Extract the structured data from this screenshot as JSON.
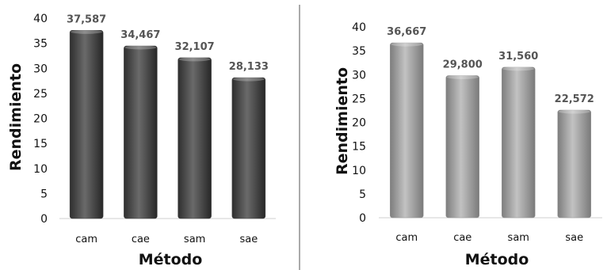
{
  "chart_data": [
    {
      "type": "bar",
      "categories": [
        "cam",
        "cae",
        "sam",
        "sae"
      ],
      "values": [
        37.587,
        34.467,
        32.107,
        28.133
      ],
      "data_labels": [
        "37,587",
        "34,467",
        "32,107",
        "28,133"
      ],
      "xlabel": "Método",
      "ylabel": "Rendimiento",
      "ylim": [
        0,
        40
      ],
      "yticks": [
        "0",
        "5",
        "10",
        "15",
        "20",
        "25",
        "30",
        "35",
        "40"
      ],
      "grid": false,
      "bar_color": "#4a4a4a"
    },
    {
      "type": "bar",
      "categories": [
        "cam",
        "cae",
        "sam",
        "sae"
      ],
      "values": [
        36.667,
        29.8,
        31.56,
        22.572
      ],
      "data_labels": [
        "36,667",
        "29,800",
        "31,560",
        "22,572"
      ],
      "xlabel": "Método",
      "ylabel": "Rendimiento",
      "ylim": [
        0,
        40
      ],
      "yticks": [
        "0",
        "5",
        "10",
        "15",
        "20",
        "25",
        "30",
        "35",
        "40"
      ],
      "grid": false,
      "bar_color": "#9a9a9a"
    }
  ],
  "divider_color": "#555555"
}
